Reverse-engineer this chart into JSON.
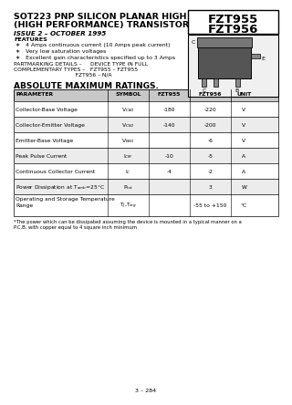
{
  "title_line1": "SOT223 PNP SILICON PLANAR HIGH CURRENT",
  "title_line2": "(HIGH PERFORMANCE) TRANSISTORS",
  "issue": "ISSUE 2 – OCTOBER 1995",
  "part_numbers": [
    "FZT955",
    "FZT956"
  ],
  "features_header": "FEATURES",
  "features": [
    "4 Amps continuous current (10 Amps peak current)",
    "Very low saturation voltages",
    "Excellent gain characteristics specified up to 3 Amps"
  ],
  "partmarking_line1": "PARTMARKING DETAILS –     DEVICE TYPE IN FULL",
  "complementary_line1": "COMPLEMENTARY TYPES –   FZT955 – FZT955",
  "complementary_line2": "                                    FZT956 – N/A",
  "abs_max_header": "ABSOLUTE MAXIMUM RATINGS.",
  "table_headers": [
    "PARAMETER",
    "SYMBOL",
    "FZT955",
    "FZT956",
    "UNIT"
  ],
  "table_rows": [
    [
      "Collector-Base Voltage",
      "V_CBO",
      "-180",
      "-220",
      "V"
    ],
    [
      "Collector-Emitter Voltage",
      "V_CEO",
      "-140",
      "-200",
      "V"
    ],
    [
      "Emitter-Base Voltage",
      "V_EBO",
      "",
      "-6",
      "V"
    ],
    [
      "Peak Pulse Current",
      "I_CM",
      "-10",
      "-5",
      "A"
    ],
    [
      "Continuous Collector Current",
      "I_C",
      "-4",
      "-2",
      "A"
    ],
    [
      "Power Dissipation at T_amb=25°C",
      "P_tot",
      "",
      "3",
      "W"
    ],
    [
      "Operating and Storage Temperature\nRange",
      "T_J,T_stg",
      "",
      "-55 to +150",
      "°C"
    ]
  ],
  "symbol_display": [
    "V$_{CBO}$",
    "V$_{CEO}$",
    "V$_{EBO}$",
    "I$_{CM}$",
    "I$_{C}$",
    "P$_{tot}$",
    "T$_{J}$,T$_{stg}$"
  ],
  "param_display": [
    "Collector-Base Voltage",
    "Collector-Emitter Voltage",
    "Emitter-Base Voltage",
    "Peak Pulse Current",
    "Continuous Collector Current",
    "Power Dissipation at T$_{amb}$=25°C",
    "Operating and Storage Temperature\nRange"
  ],
  "footnote_line1": "*The power which can be dissipated assuming the device is mounted in a typical manner on a",
  "footnote_line2": "P.C.B. with copper equal to 4 square inch minimum",
  "page_number": "3 – 284",
  "bg_color": "#ffffff",
  "table_header_bg": "#c8c8c8",
  "border_color": "#000000"
}
